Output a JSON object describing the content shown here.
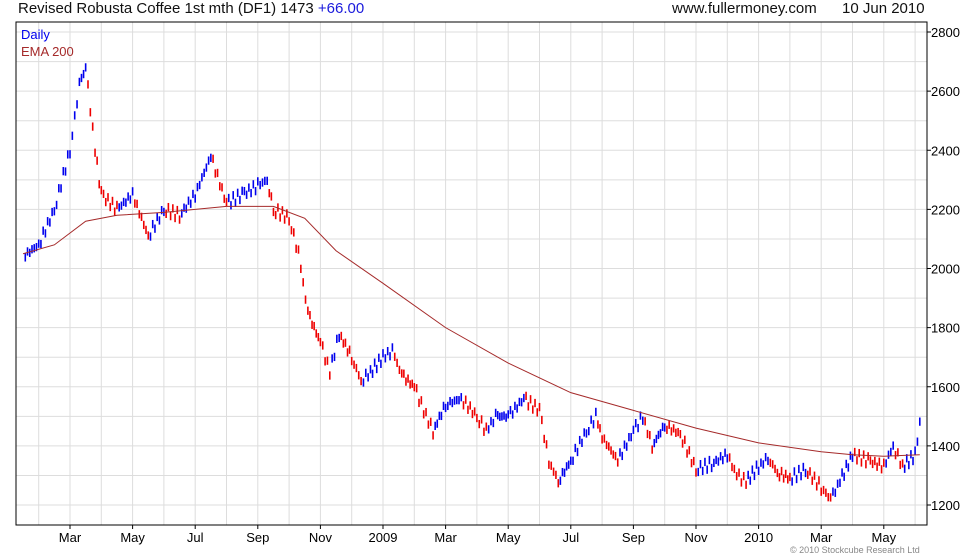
{
  "header": {
    "title": "Revised Robusta Coffee 1st mth (DF1) 1473",
    "change": "+66.00",
    "site": "www.fullermoney.com",
    "date": "10 Jun 2010"
  },
  "copyright": "© 2010 Stockcube Research Ltd",
  "colors": {
    "up": "#0000ee",
    "down": "#ee0000",
    "ema": "#a52a2a",
    "grid": "#dddddd"
  },
  "chart_data": {
    "type": "line",
    "title": "Revised Robusta Coffee 1st mth (DF1)",
    "x_unit": "months since Jan 2008",
    "legend": [
      "Daily",
      "EMA 200"
    ],
    "legend_position": "top-left",
    "ylim": [
      1200,
      2800
    ],
    "yticks": [
      1200,
      1400,
      1600,
      1800,
      2000,
      2200,
      2400,
      2600,
      2800
    ],
    "xticks": [
      {
        "m": 2,
        "label": "Mar"
      },
      {
        "m": 4,
        "label": "May"
      },
      {
        "m": 6,
        "label": "Jul"
      },
      {
        "m": 8,
        "label": "Sep"
      },
      {
        "m": 10,
        "label": "Nov"
      },
      {
        "m": 12,
        "label": "2009"
      },
      {
        "m": 14,
        "label": "Mar"
      },
      {
        "m": 16,
        "label": "May"
      },
      {
        "m": 18,
        "label": "Jul"
      },
      {
        "m": 20,
        "label": "Sep"
      },
      {
        "m": 22,
        "label": "Nov"
      },
      {
        "m": 24,
        "label": "2010"
      },
      {
        "m": 26,
        "label": "Mar"
      },
      {
        "m": 28,
        "label": "May"
      }
    ],
    "series": [
      {
        "name": "Daily",
        "x": [
          0.5,
          1.0,
          1.5,
          2.0,
          2.3,
          2.5,
          2.8,
          3.0,
          3.5,
          4.0,
          4.5,
          5.0,
          5.5,
          6.0,
          6.5,
          7.0,
          7.5,
          8.0,
          8.3,
          8.5,
          9.0,
          9.3,
          9.6,
          10.0,
          10.3,
          10.6,
          11.0,
          11.3,
          11.6,
          12.0,
          12.3,
          12.6,
          13.0,
          13.3,
          13.6,
          14.0,
          14.5,
          15.0,
          15.3,
          15.6,
          16.0,
          16.5,
          17.0,
          17.3,
          17.6,
          18.0,
          18.5,
          18.8,
          19.0,
          19.5,
          20.0,
          20.3,
          20.6,
          21.0,
          21.5,
          22.0,
          22.5,
          23.0,
          23.3,
          23.6,
          24.0,
          24.3,
          24.6,
          25.0,
          25.5,
          26.0,
          26.3,
          26.6,
          27.0,
          27.5,
          28.0,
          28.3,
          28.6,
          29.0,
          29.15
        ],
        "values": [
          2040,
          2080,
          2200,
          2400,
          2620,
          2680,
          2400,
          2250,
          2200,
          2250,
          2110,
          2200,
          2180,
          2250,
          2380,
          2220,
          2250,
          2280,
          2300,
          2200,
          2170,
          2050,
          1850,
          1750,
          1650,
          1780,
          1700,
          1620,
          1650,
          1700,
          1720,
          1640,
          1600,
          1520,
          1450,
          1540,
          1560,
          1500,
          1450,
          1500,
          1500,
          1560,
          1520,
          1350,
          1280,
          1350,
          1450,
          1500,
          1430,
          1350,
          1450,
          1500,
          1400,
          1470,
          1440,
          1320,
          1340,
          1370,
          1300,
          1280,
          1330,
          1360,
          1310,
          1290,
          1320,
          1260,
          1220,
          1280,
          1370,
          1350,
          1330,
          1400,
          1330,
          1370,
          1473
        ]
      },
      {
        "name": "EMA 200",
        "x": [
          0.5,
          1.5,
          2.5,
          3.5,
          5,
          7,
          8.5,
          9.5,
          10.5,
          12,
          14,
          16,
          18,
          20,
          22,
          24,
          26,
          27,
          28,
          29.15
        ],
        "values": [
          2050,
          2080,
          2160,
          2180,
          2190,
          2210,
          2210,
          2170,
          2060,
          1950,
          1800,
          1680,
          1580,
          1520,
          1460,
          1410,
          1380,
          1370,
          1365,
          1370
        ]
      }
    ]
  }
}
